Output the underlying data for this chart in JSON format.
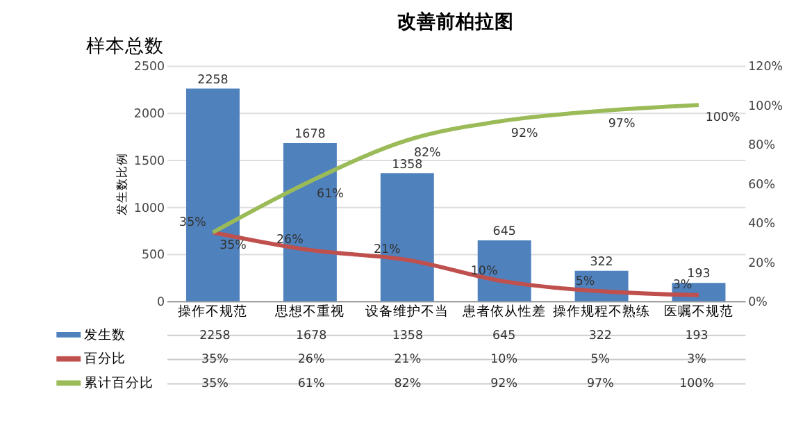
{
  "chart_data": {
    "type": "bar",
    "title": "改善前柏拉图",
    "ylabel": "发生数比例",
    "annotations": [
      "样本总数"
    ],
    "categories": [
      "操作不规范",
      "思想不重视",
      "设备维护不当",
      "患者依从性差",
      "操作规程不熟练",
      "医嘱不规范"
    ],
    "series": [
      {
        "name": "发生数",
        "color": "#4f81bd",
        "values": [
          2258,
          1678,
          1358,
          645,
          322,
          193
        ],
        "value_labels": [
          "2258",
          "1678",
          "1358",
          "645",
          "322",
          "193"
        ]
      },
      {
        "name": "百分比",
        "type": "line",
        "axis": "y2",
        "color": "#c0504d",
        "values": [
          35,
          26,
          21,
          10,
          5,
          3
        ],
        "value_labels": [
          "35%",
          "26%",
          "21%",
          "10%",
          "5%",
          "3%"
        ]
      },
      {
        "name": "累计百分比",
        "type": "line",
        "axis": "y2",
        "color": "#9bbb59",
        "values": [
          35,
          61,
          82,
          92,
          97,
          100
        ],
        "value_labels": [
          "35%",
          "61%",
          "82%",
          "92%",
          "97%",
          "100%"
        ]
      }
    ],
    "ylim": [
      0,
      2500
    ],
    "yticks": [
      0,
      500,
      1000,
      1500,
      2000,
      2500
    ],
    "y2lim": [
      0,
      120
    ],
    "y2ticks": [
      {
        "value": 0,
        "label": "0%"
      },
      {
        "value": 20,
        "label": "20%"
      },
      {
        "value": 40,
        "label": "40%"
      },
      {
        "value": 60,
        "label": "60%"
      },
      {
        "value": 80,
        "label": "80%"
      },
      {
        "value": 100,
        "label": "100%"
      },
      {
        "value": 120,
        "label": "120%"
      }
    ],
    "data_labels": true,
    "grid": "y",
    "legend": "bottom",
    "line_style": "solid",
    "marker": "none"
  }
}
